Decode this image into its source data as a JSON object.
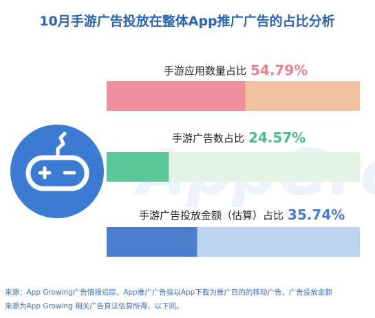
{
  "chart_data": {
    "type": "bar",
    "title": "10月手游广告投放在整体App推广广告的占比分析",
    "bars": [
      {
        "label": "手游应用数量占比",
        "value_text": "54.79%",
        "value": 54.79,
        "color": "#ed8f9c",
        "rest_color": "#f3c2a0",
        "label_color": "#ed7f8b"
      },
      {
        "label": "手游广告数占比",
        "value_text": "24.57%",
        "value": 24.57,
        "color": "#5cc89a",
        "rest_color": "#e3f3e6",
        "label_color": "#4cbc8c"
      },
      {
        "label": "手游广告投放金额（估算）占比",
        "value_text": "35.74%",
        "value": 35.74,
        "color": "#4c7ed0",
        "rest_color": "#bcd3ee",
        "label_color": "#4a7ccf"
      }
    ]
  },
  "watermark": "AppGrowing",
  "icon": "game-controller-icon",
  "footer": {
    "line1": "来源：App Growing广告情报追踪，App推广广告指以App下载为推广目的的移动广告，广告投放金额",
    "line2": "来源为App Growing 相关广告算法估算所得，以下同。"
  },
  "colors": {
    "title": "#2d64b2",
    "icon_bg": "#3b7bd3",
    "watermark": "#eef3fb",
    "footer": "#3d6fb8"
  }
}
